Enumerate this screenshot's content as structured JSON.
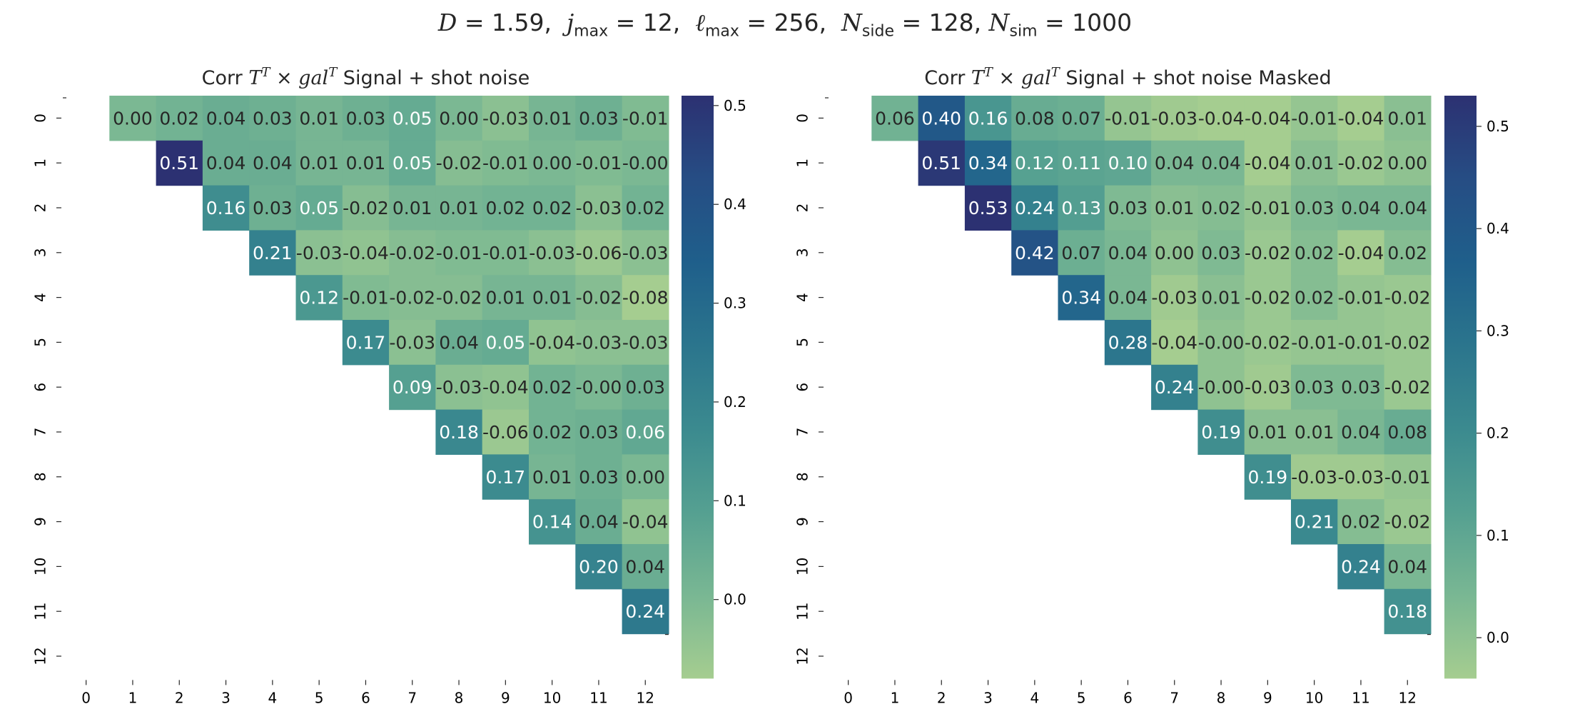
{
  "title": "D = 1.59,  j_max = 12,  ℓ_max = 256,  N_side = 128, N_sim = 1000",
  "title_parts": {
    "D": "1.59",
    "jmax": "12",
    "lmax": "256",
    "nside": "128",
    "nsim": "1000"
  },
  "colormap": {
    "name": "crest",
    "stops": [
      "#a5cd90",
      "#79b793",
      "#55a091",
      "#3b8a8f",
      "#2b758d",
      "#1f5f8b",
      "#264d84",
      "#2c3172"
    ],
    "annot_dark": "#262626",
    "annot_light": "#ffffff"
  },
  "chart_data": [
    {
      "type": "heatmap",
      "title": "Corr T^T × gal^T Signal + shot noise",
      "title_prefix": "Corr",
      "title_suffix": "Signal + shot noise",
      "x_ticks": [
        "0",
        "1",
        "2",
        "3",
        "4",
        "5",
        "6",
        "7",
        "8",
        "9",
        "10",
        "11",
        "12"
      ],
      "y_ticks": [
        "0",
        "1",
        "2",
        "3",
        "4",
        "5",
        "6",
        "7",
        "8",
        "9",
        "10",
        "11",
        "12"
      ],
      "mask": "lower triangle and diagonal hidden",
      "colorbar": {
        "vmin": -0.08,
        "vmax": 0.51,
        "ticks": [
          "0.0",
          "0.1",
          "0.2",
          "0.3",
          "0.4",
          "0.5"
        ],
        "tick_values": [
          0.0,
          0.1,
          0.2,
          0.3,
          0.4,
          0.5
        ]
      },
      "matrix": [
        [
          null,
          0.0,
          0.02,
          0.04,
          0.03,
          0.01,
          0.03,
          0.05,
          0.0,
          -0.03,
          0.01,
          0.03,
          -0.01
        ],
        [
          null,
          null,
          0.51,
          0.04,
          0.04,
          0.01,
          0.01,
          0.05,
          -0.02,
          -0.01,
          0.0,
          -0.01,
          -0.0
        ],
        [
          null,
          null,
          null,
          0.16,
          0.03,
          0.05,
          -0.02,
          0.01,
          0.01,
          0.02,
          0.02,
          -0.03,
          0.02
        ],
        [
          null,
          null,
          null,
          null,
          0.21,
          -0.03,
          -0.04,
          -0.02,
          -0.01,
          -0.01,
          -0.03,
          -0.06,
          -0.03
        ],
        [
          null,
          null,
          null,
          null,
          null,
          0.12,
          -0.01,
          -0.02,
          -0.02,
          0.01,
          0.01,
          -0.02,
          -0.08
        ],
        [
          null,
          null,
          null,
          null,
          null,
          null,
          0.17,
          -0.03,
          0.04,
          0.05,
          -0.04,
          -0.03,
          -0.03
        ],
        [
          null,
          null,
          null,
          null,
          null,
          null,
          null,
          0.09,
          -0.03,
          -0.04,
          0.02,
          -0.0,
          0.03
        ],
        [
          null,
          null,
          null,
          null,
          null,
          null,
          null,
          null,
          0.18,
          -0.06,
          0.02,
          0.03,
          0.06
        ],
        [
          null,
          null,
          null,
          null,
          null,
          null,
          null,
          null,
          null,
          0.17,
          0.01,
          0.03,
          0.0
        ],
        [
          null,
          null,
          null,
          null,
          null,
          null,
          null,
          null,
          null,
          null,
          0.14,
          0.04,
          -0.04
        ],
        [
          null,
          null,
          null,
          null,
          null,
          null,
          null,
          null,
          null,
          null,
          null,
          0.2,
          0.04
        ],
        [
          null,
          null,
          null,
          null,
          null,
          null,
          null,
          null,
          null,
          null,
          null,
          null,
          0.24
        ],
        [
          null,
          null,
          null,
          null,
          null,
          null,
          null,
          null,
          null,
          null,
          null,
          null,
          null
        ]
      ]
    },
    {
      "type": "heatmap",
      "title": "Corr T^T × gal^T Signal + shot noise Masked",
      "title_prefix": "Corr",
      "title_suffix": "Signal + shot noise Masked",
      "x_ticks": [
        "0",
        "1",
        "2",
        "3",
        "4",
        "5",
        "6",
        "7",
        "8",
        "9",
        "10",
        "11",
        "12"
      ],
      "y_ticks": [
        "0",
        "1",
        "2",
        "3",
        "4",
        "5",
        "6",
        "7",
        "8",
        "9",
        "10",
        "11",
        "12"
      ],
      "mask": "lower triangle and diagonal hidden",
      "colorbar": {
        "vmin": -0.04,
        "vmax": 0.53,
        "ticks": [
          "0.0",
          "0.1",
          "0.2",
          "0.3",
          "0.4",
          "0.5"
        ],
        "tick_values": [
          0.0,
          0.1,
          0.2,
          0.3,
          0.4,
          0.5
        ]
      },
      "matrix": [
        [
          null,
          0.06,
          0.4,
          0.16,
          0.08,
          0.07,
          -0.01,
          -0.03,
          -0.04,
          -0.04,
          -0.01,
          -0.04,
          0.01
        ],
        [
          null,
          null,
          0.51,
          0.34,
          0.12,
          0.11,
          0.1,
          0.04,
          0.04,
          -0.04,
          0.01,
          -0.02,
          0.0
        ],
        [
          null,
          null,
          null,
          0.53,
          0.24,
          0.13,
          0.03,
          0.01,
          0.02,
          -0.01,
          0.03,
          0.04,
          0.04
        ],
        [
          null,
          null,
          null,
          null,
          0.42,
          0.07,
          0.04,
          0.0,
          0.03,
          -0.02,
          0.02,
          -0.04,
          0.02
        ],
        [
          null,
          null,
          null,
          null,
          null,
          0.34,
          0.04,
          -0.03,
          0.01,
          -0.02,
          0.02,
          -0.01,
          -0.02
        ],
        [
          null,
          null,
          null,
          null,
          null,
          null,
          0.28,
          -0.04,
          -0.0,
          -0.02,
          -0.01,
          -0.01,
          -0.02
        ],
        [
          null,
          null,
          null,
          null,
          null,
          null,
          null,
          0.24,
          -0.0,
          -0.03,
          0.03,
          0.03,
          -0.02
        ],
        [
          null,
          null,
          null,
          null,
          null,
          null,
          null,
          null,
          0.19,
          0.01,
          0.01,
          0.04,
          0.08
        ],
        [
          null,
          null,
          null,
          null,
          null,
          null,
          null,
          null,
          null,
          0.19,
          -0.03,
          -0.03,
          -0.01
        ],
        [
          null,
          null,
          null,
          null,
          null,
          null,
          null,
          null,
          null,
          null,
          0.21,
          0.02,
          -0.02
        ],
        [
          null,
          null,
          null,
          null,
          null,
          null,
          null,
          null,
          null,
          null,
          null,
          0.24,
          0.04
        ],
        [
          null,
          null,
          null,
          null,
          null,
          null,
          null,
          null,
          null,
          null,
          null,
          null,
          0.18
        ],
        [
          null,
          null,
          null,
          null,
          null,
          null,
          null,
          null,
          null,
          null,
          null,
          null,
          null
        ]
      ]
    }
  ]
}
